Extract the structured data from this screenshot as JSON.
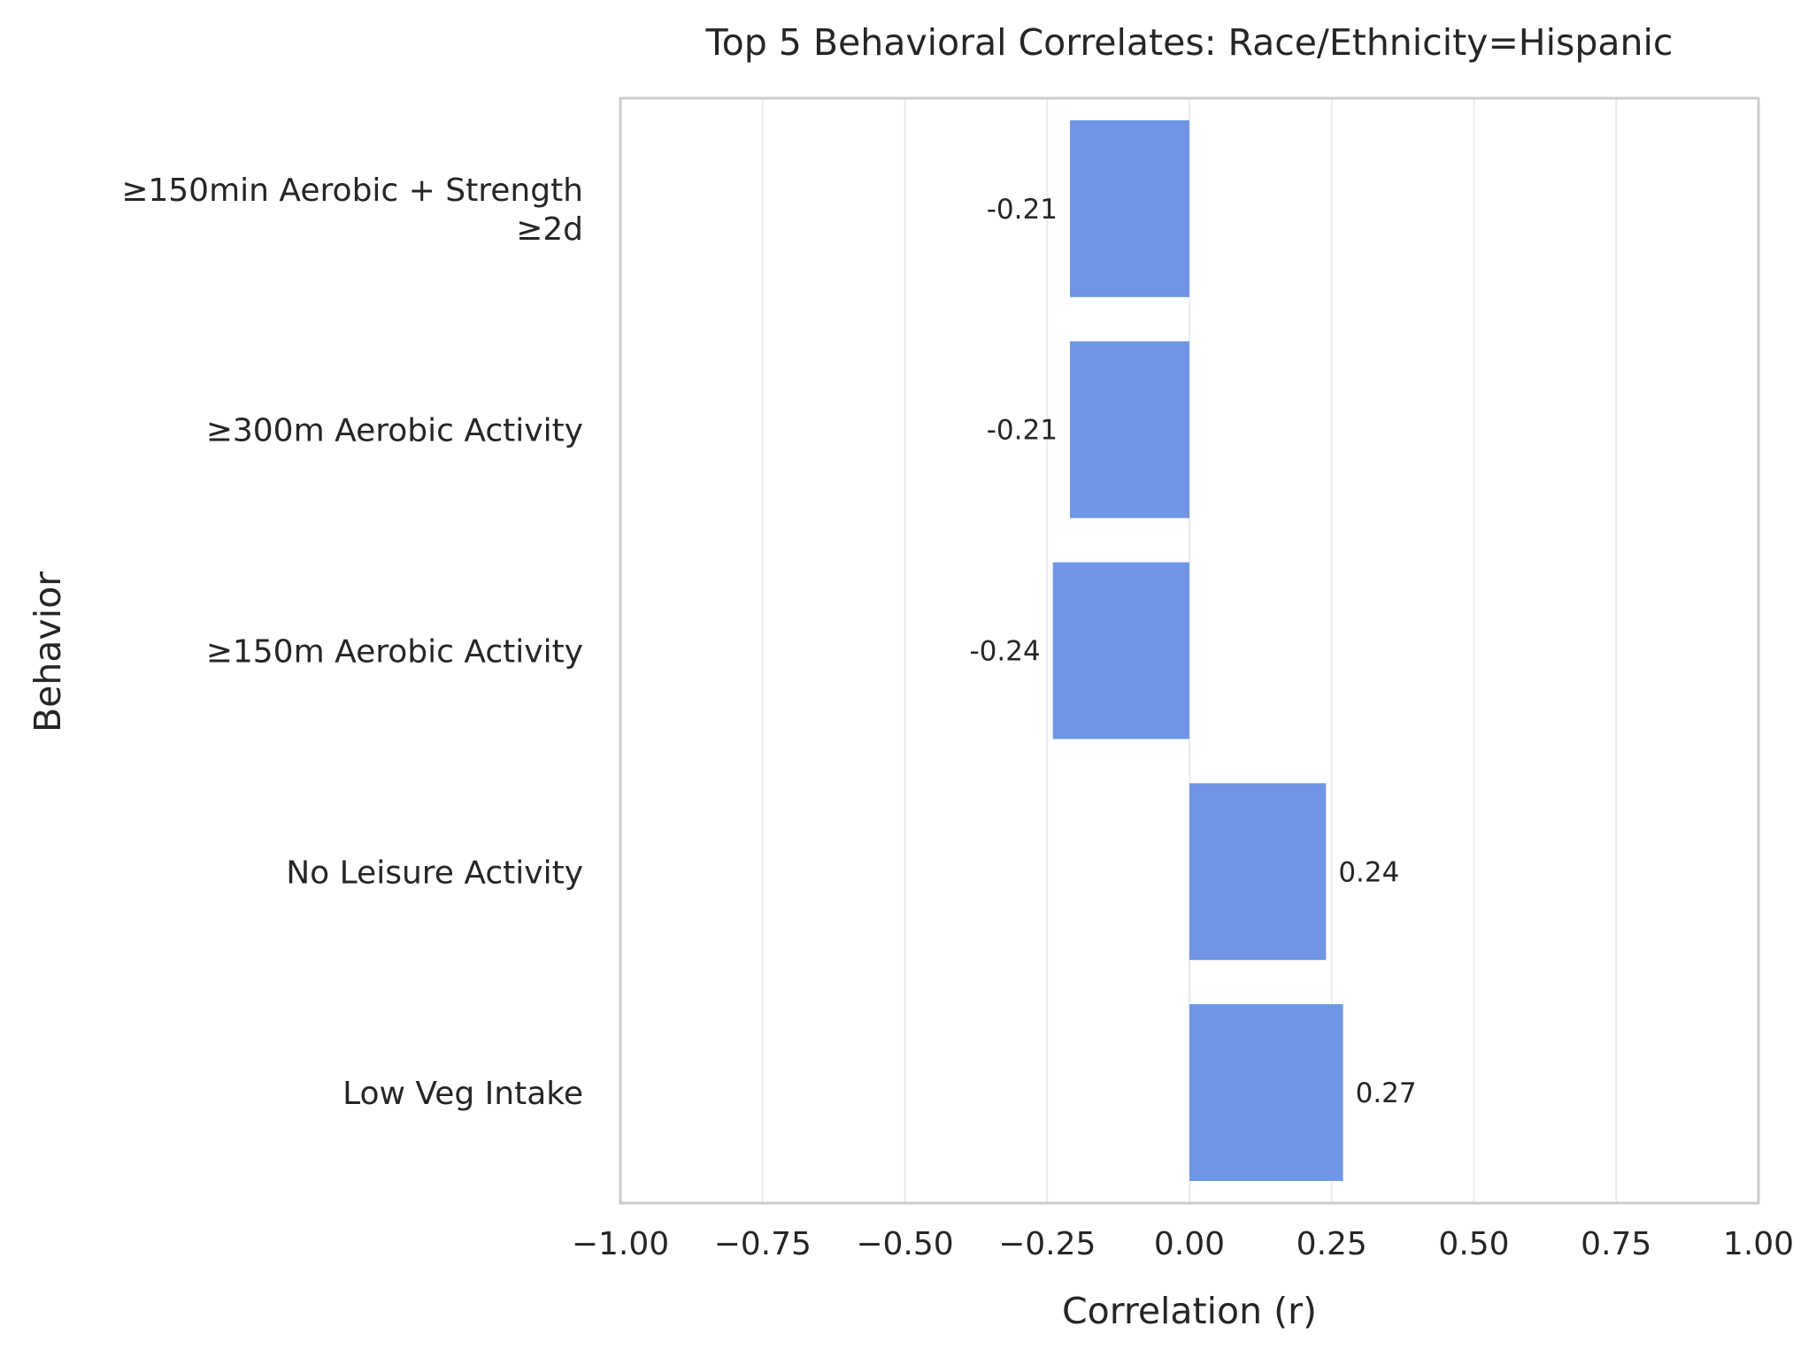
{
  "chart_data": {
    "type": "bar",
    "orientation": "horizontal",
    "title": "Top 5 Behavioral Correlates: Race/Ethnicity=Hispanic",
    "xlabel": "Correlation (r)",
    "ylabel": "Behavior",
    "xlim": [
      -1.0,
      1.0
    ],
    "xticks": [
      -1.0,
      -0.75,
      -0.5,
      -0.25,
      0.0,
      0.25,
      0.5,
      0.75,
      1.0
    ],
    "xtick_labels": [
      "−1.00",
      "−0.75",
      "−0.50",
      "−0.25",
      "0.00",
      "0.25",
      "0.50",
      "0.75",
      "1.00"
    ],
    "grid": "vertical",
    "categories": [
      [
        "≥150min Aerobic + Strength",
        "≥2d"
      ],
      [
        "≥300m Aerobic Activity"
      ],
      [
        "≥150m Aerobic Activity"
      ],
      [
        "No Leisure Activity"
      ],
      [
        "Low Veg Intake"
      ]
    ],
    "values": [
      -0.21,
      -0.21,
      -0.24,
      0.24,
      0.27
    ],
    "value_labels": [
      "-0.21",
      "-0.21",
      "-0.24",
      "0.24",
      "0.27"
    ],
    "bar_color": "#6f96e4",
    "grid_color": "#ebebeb",
    "frame_color": "#cccccc"
  }
}
